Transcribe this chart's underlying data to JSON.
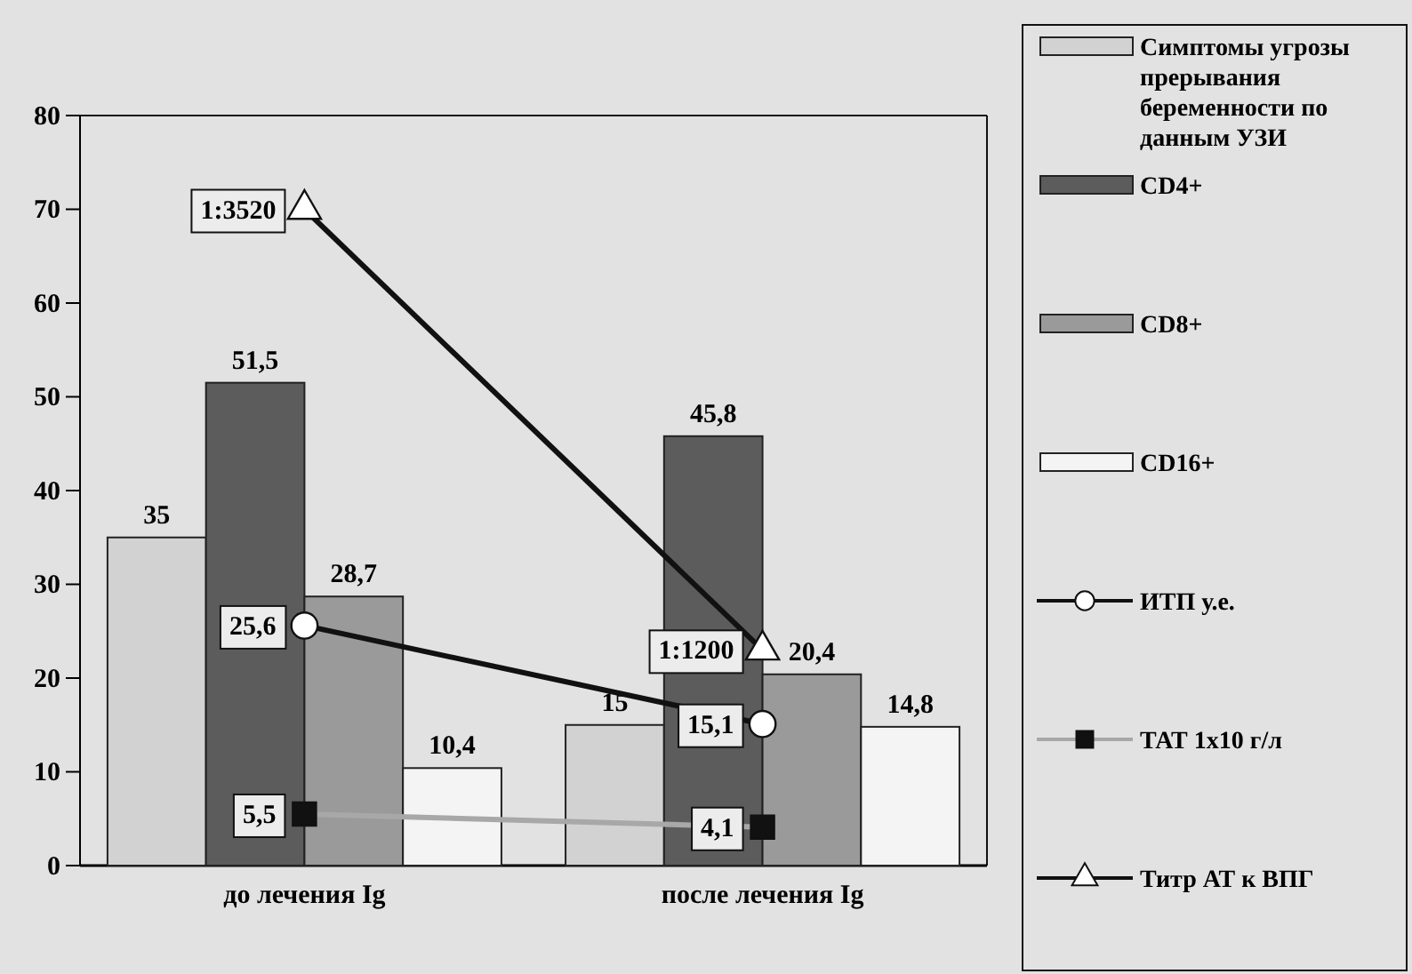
{
  "chart_data": {
    "type": "bar",
    "categories": [
      "до лечения Ig",
      "после лечения Ig"
    ],
    "ylim": [
      0,
      80
    ],
    "yticks": [
      0,
      10,
      20,
      30,
      40,
      50,
      60,
      70,
      80
    ],
    "grid": false,
    "legend": "right",
    "series": [
      {
        "name": "Симптомы угрозы прерывания беременности по данным УЗИ",
        "color": "#d2d2d2",
        "values": [
          35,
          15
        ],
        "value_labels": [
          "35",
          "15"
        ]
      },
      {
        "name": "CD4+",
        "color": "#5c5c5c",
        "values": [
          51.5,
          45.8
        ],
        "value_labels": [
          "51,5",
          "45,8"
        ]
      },
      {
        "name": "CD8+",
        "color": "#9a9a9a",
        "values": [
          28.7,
          20.4
        ],
        "value_labels": [
          "28,7",
          "20,4"
        ]
      },
      {
        "name": "CD16+",
        "color": "#f4f4f4",
        "values": [
          10.4,
          14.8
        ],
        "value_labels": [
          "10,4",
          "14,8"
        ]
      },
      {
        "name": "ИТП у.е.",
        "type": "line",
        "marker": "circle",
        "color": "#111111",
        "values": [
          25.6,
          15.1
        ],
        "value_labels": [
          "25,6",
          "15,1"
        ]
      },
      {
        "name": "ТАТ 1x10 г/л",
        "type": "line",
        "marker": "square",
        "color": "#a8a8a8",
        "values": [
          5.5,
          4.1
        ],
        "value_labels": [
          "5,5",
          "4,1"
        ]
      },
      {
        "name": "Титр АТ к ВПГ",
        "type": "line",
        "marker": "triangle",
        "color": "#111111",
        "values": [
          70,
          23
        ],
        "value_labels": [
          "1:3520",
          "1:1200"
        ]
      }
    ]
  }
}
